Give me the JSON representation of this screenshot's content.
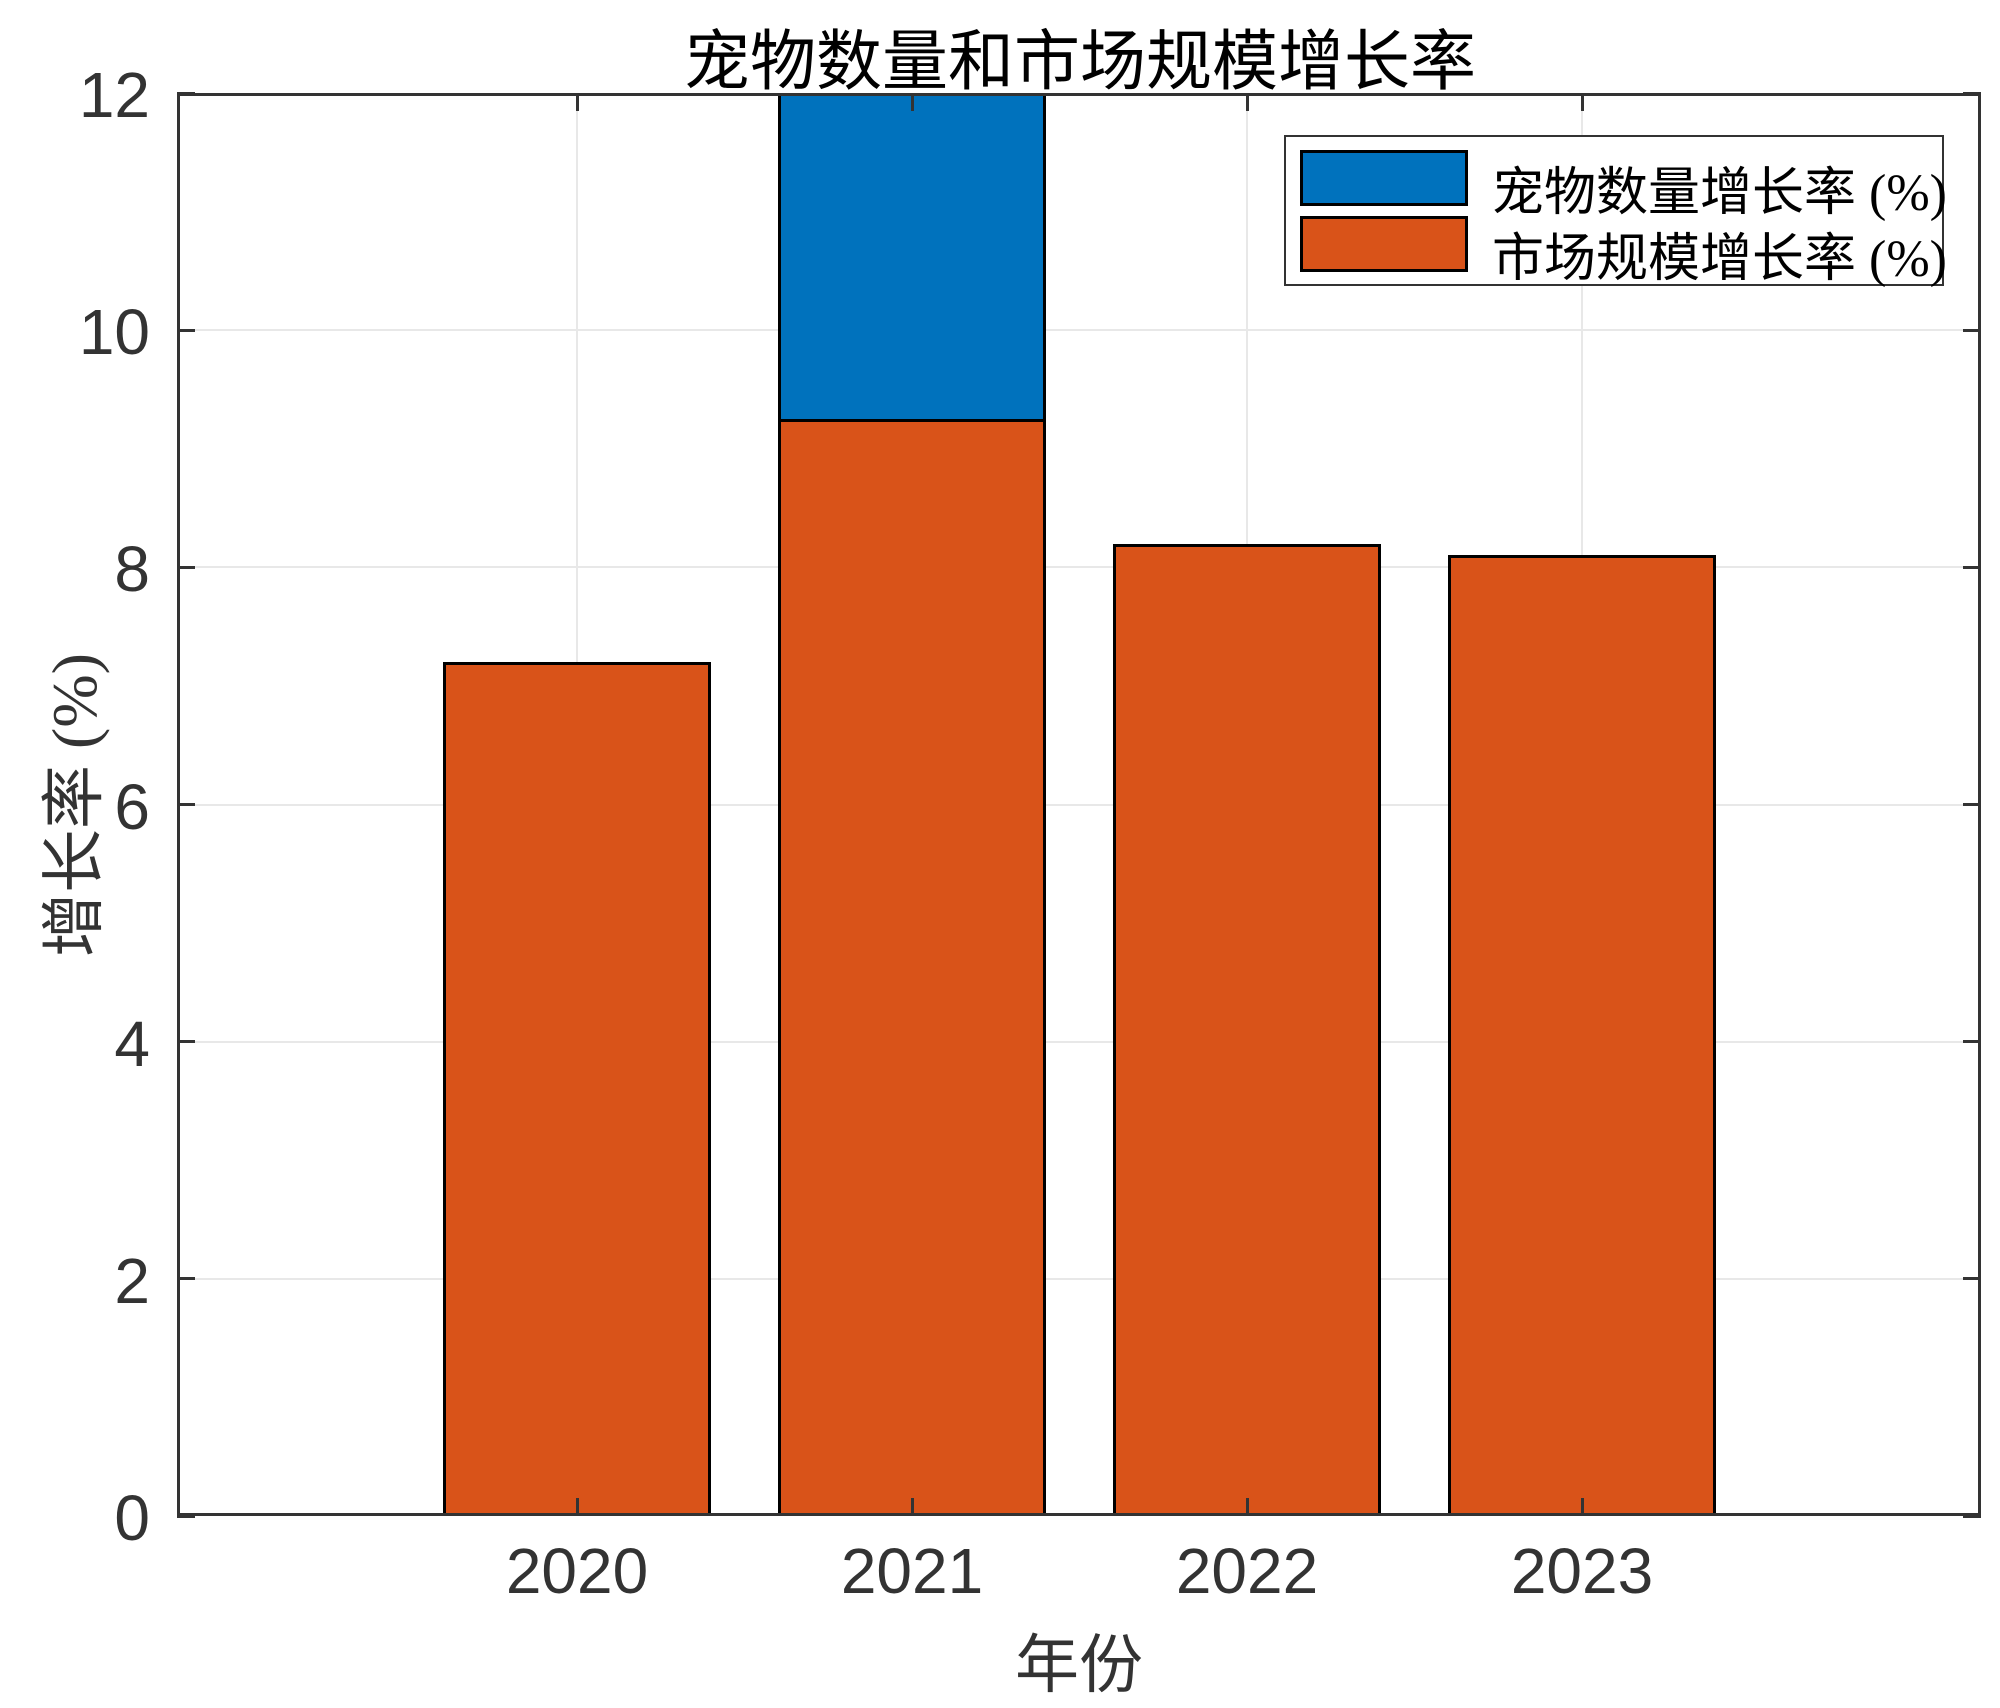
{
  "chart_data": {
    "type": "bar",
    "title": "宠物数量和市场规模增长率",
    "xlabel": "年份",
    "ylabel": "增长率 (%)",
    "categories": [
      "2020",
      "2021",
      "2022",
      "2023"
    ],
    "series": [
      {
        "key": "pet-count-growth-rate",
        "name": "宠物数量增长率 (%)",
        "color": "#0072BD",
        "values": [
          null,
          12,
          null,
          null
        ],
        "clipped_at_ymax": [
          false,
          true,
          false,
          false
        ],
        "note": "Only the 2021 bar is visible; it reaches the top of the axis (value >= 12, clipped). Bars of other years are hidden behind the market-size series."
      },
      {
        "key": "market-size-growth-rate",
        "name": "市场规模增长率 (%)",
        "color": "#D95319",
        "values": [
          7.2,
          9.25,
          8.2,
          8.1
        ]
      }
    ],
    "ylim": [
      0,
      12
    ],
    "yticks": [
      0,
      2,
      4,
      6,
      8,
      10,
      12
    ],
    "grid": true,
    "bar_layout": "overlaid",
    "legend_position": "top-right",
    "colors": {
      "axis": "#333333",
      "grid": "#e8e8e8",
      "bar_edge": "#000000",
      "title_text": "#000000",
      "legend_text": "#000000"
    }
  }
}
